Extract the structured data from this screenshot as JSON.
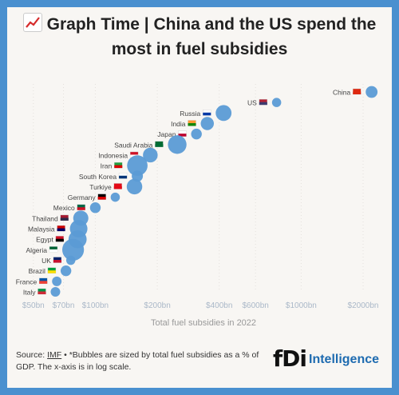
{
  "title": "Graph Time | China and the US spend the most in fuel subsidies",
  "title_icon": "chart-increasing-icon",
  "colors": {
    "bubble": "#5b9bd5",
    "border": "#4a90cf",
    "background": "#f8f6f3",
    "tick_text": "#aab8c8",
    "label_text": "#444444"
  },
  "chart_data": {
    "type": "scatter",
    "xlabel": "Total fuel subsidies in 2022",
    "x_scale": "log",
    "xlim": [
      45,
      2500
    ],
    "ticks": [
      {
        "value": 50,
        "label": "$50bn"
      },
      {
        "value": 70,
        "label": "$70bn"
      },
      {
        "value": 100,
        "label": "$100bn"
      },
      {
        "value": 200,
        "label": "$200bn"
      },
      {
        "value": 400,
        "label": "$400bn"
      },
      {
        "value": 600,
        "label": "$600bn"
      },
      {
        "value": 1000,
        "label": "$1000bn"
      },
      {
        "value": 2000,
        "label": "$2000bn"
      }
    ],
    "grid": "vertical dotted",
    "points": [
      {
        "label": "China",
        "flag": "china-flag",
        "value": 2200,
        "gdp_pct": 1.5
      },
      {
        "label": "US",
        "flag": "us-flag",
        "value": 760,
        "gdp_pct": 0.5
      },
      {
        "label": "Russia",
        "flag": "russia-flag",
        "value": 420,
        "gdp_pct": 4.0
      },
      {
        "label": "India",
        "flag": "india-flag",
        "value": 350,
        "gdp_pct": 2.2
      },
      {
        "label": "Japan",
        "flag": "japan-flag",
        "value": 310,
        "gdp_pct": 1.0
      },
      {
        "label": "Saudi Arabia",
        "flag": "saudi-arabia-flag",
        "value": 250,
        "gdp_pct": 6.5
      },
      {
        "label": "Indonesia",
        "flag": "indonesia-flag",
        "value": 185,
        "gdp_pct": 3.2
      },
      {
        "label": "Iran",
        "flag": "iran-flag",
        "value": 160,
        "gdp_pct": 8.5
      },
      {
        "label": "South Korea",
        "flag": "south-korea-flag",
        "value": 160,
        "gdp_pct": 1.2
      },
      {
        "label": "Turkiye",
        "flag": "turkiye-flag",
        "value": 155,
        "gdp_pct": 3.8
      },
      {
        "label": "Germany",
        "flag": "germany-flag",
        "value": 125,
        "gdp_pct": 0.5
      },
      {
        "label": "Mexico",
        "flag": "mexico-flag",
        "value": 100,
        "gdp_pct": 1.0
      },
      {
        "label": "Thailand",
        "flag": "thailand-flag",
        "value": 85,
        "gdp_pct": 3.5
      },
      {
        "label": "Malaysia",
        "flag": "malaysia-flag",
        "value": 83,
        "gdp_pct": 5.5
      },
      {
        "label": "Egypt",
        "flag": "egypt-flag",
        "value": 82,
        "gdp_pct": 6.0
      },
      {
        "label": "Algeria",
        "flag": "algeria-flag",
        "value": 78,
        "gdp_pct": 10.0
      },
      {
        "label": "UK",
        "flag": "uk-flag",
        "value": 76,
        "gdp_pct": 0.5
      },
      {
        "label": "Brazil",
        "flag": "brazil-flag",
        "value": 72,
        "gdp_pct": 1.0
      },
      {
        "label": "France",
        "flag": "france-flag",
        "value": 65,
        "gdp_pct": 0.6
      },
      {
        "label": "Italy",
        "flag": "italy-flag",
        "value": 64,
        "gdp_pct": 0.6
      }
    ]
  },
  "footer": {
    "source_prefix": "Source: ",
    "source_link": "IMF",
    "note": " • *Bubbles are sized by total fuel subsidies as a % of GDP. The x-axis is in log scale."
  },
  "logo": {
    "mark": "fDi",
    "name": "Intelligence"
  }
}
